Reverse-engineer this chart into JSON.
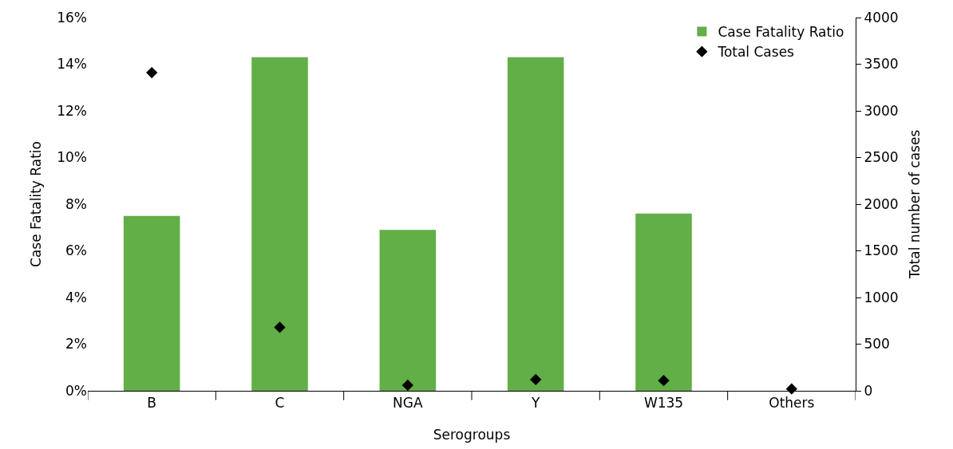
{
  "chart_data": {
    "type": "bar",
    "xlabel": "Serogroups",
    "ylabel": "Case Fatality Ratio",
    "y2label": "Total number of cases",
    "categories": [
      "B",
      "C",
      "NGA",
      "Y",
      "W135",
      "Others"
    ],
    "series": [
      {
        "name": "Case Fatality Ratio",
        "color": "#62ae47",
        "values": [
          7.5,
          14.3,
          6.9,
          14.3,
          7.6,
          0
        ]
      },
      {
        "name": "Total Cases",
        "type": "scatter",
        "axis": "y2",
        "color": "#000000",
        "marker": "diamond",
        "values": [
          3410,
          680,
          60,
          120,
          110,
          20
        ]
      }
    ],
    "ylim": [
      0,
      16
    ],
    "yticks": [
      {
        "value": 0,
        "label": "0%"
      },
      {
        "value": 2,
        "label": "2%"
      },
      {
        "value": 4,
        "label": "4%"
      },
      {
        "value": 6,
        "label": "6%"
      },
      {
        "value": 8,
        "label": "8%"
      },
      {
        "value": 10,
        "label": "10%"
      },
      {
        "value": 12,
        "label": "12%"
      },
      {
        "value": 14,
        "label": "14%"
      },
      {
        "value": 16,
        "label": "16%"
      }
    ],
    "y2lim": [
      0,
      4000
    ],
    "y2ticks": [
      0,
      500,
      1000,
      1500,
      2000,
      2500,
      3000,
      3500,
      4000
    ],
    "legend": "top right"
  }
}
